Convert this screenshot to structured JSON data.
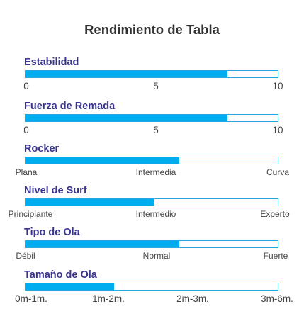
{
  "title": "Rendimiento de Tabla",
  "colors": {
    "bar_fill": "#00aeef",
    "bar_border": "#2aa4e0",
    "label": "#3a3590"
  },
  "metrics": [
    {
      "label": "Estabilidad",
      "level_fraction": 0.8,
      "scale": [
        "0",
        "5",
        "10"
      ]
    },
    {
      "label": "Fuerza de Remada",
      "level_fraction": 0.8,
      "scale": [
        "0",
        "5",
        "10"
      ]
    },
    {
      "label": "Rocker",
      "level_fraction": 0.61,
      "scale": [
        "Plana",
        "Intermedia",
        "Curva"
      ]
    },
    {
      "label": "Nivel de Surf",
      "level_fraction": 0.51,
      "scale": [
        "Principiante",
        "Intermedio",
        "Experto"
      ]
    },
    {
      "label": "Tipo de Ola",
      "level_fraction": 0.61,
      "scale": [
        "Débil",
        "Normal",
        "Fuerte"
      ]
    },
    {
      "label": "Tamaño de Ola",
      "level_fraction": 0.35,
      "scale": [
        "0m-1m.",
        "1m-2m.",
        "2m-3m.",
        "3m-6m."
      ]
    }
  ]
}
